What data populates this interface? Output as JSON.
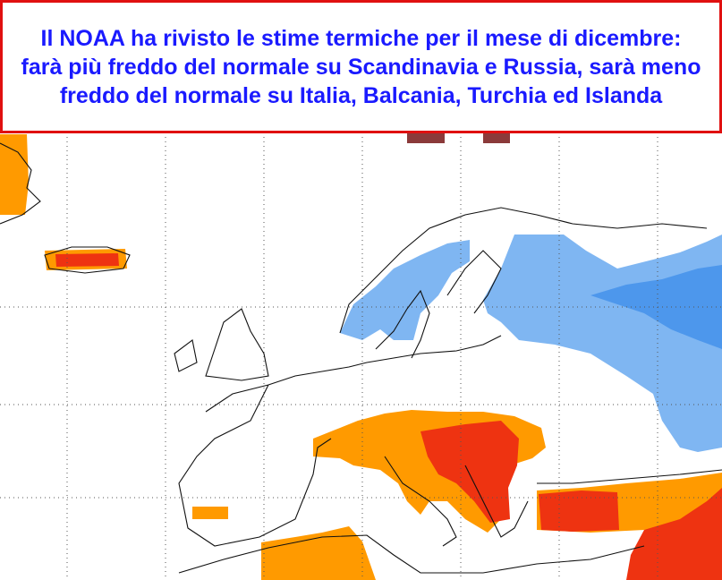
{
  "header": {
    "title": "Il NOAA ha rivisto le stime termiche per il mese di dicembre: farà più freddo del normale su Scandinavia e Russia, sarà meno freddo del normale su Italia, Balcania, Turchia ed Islanda"
  }
}
